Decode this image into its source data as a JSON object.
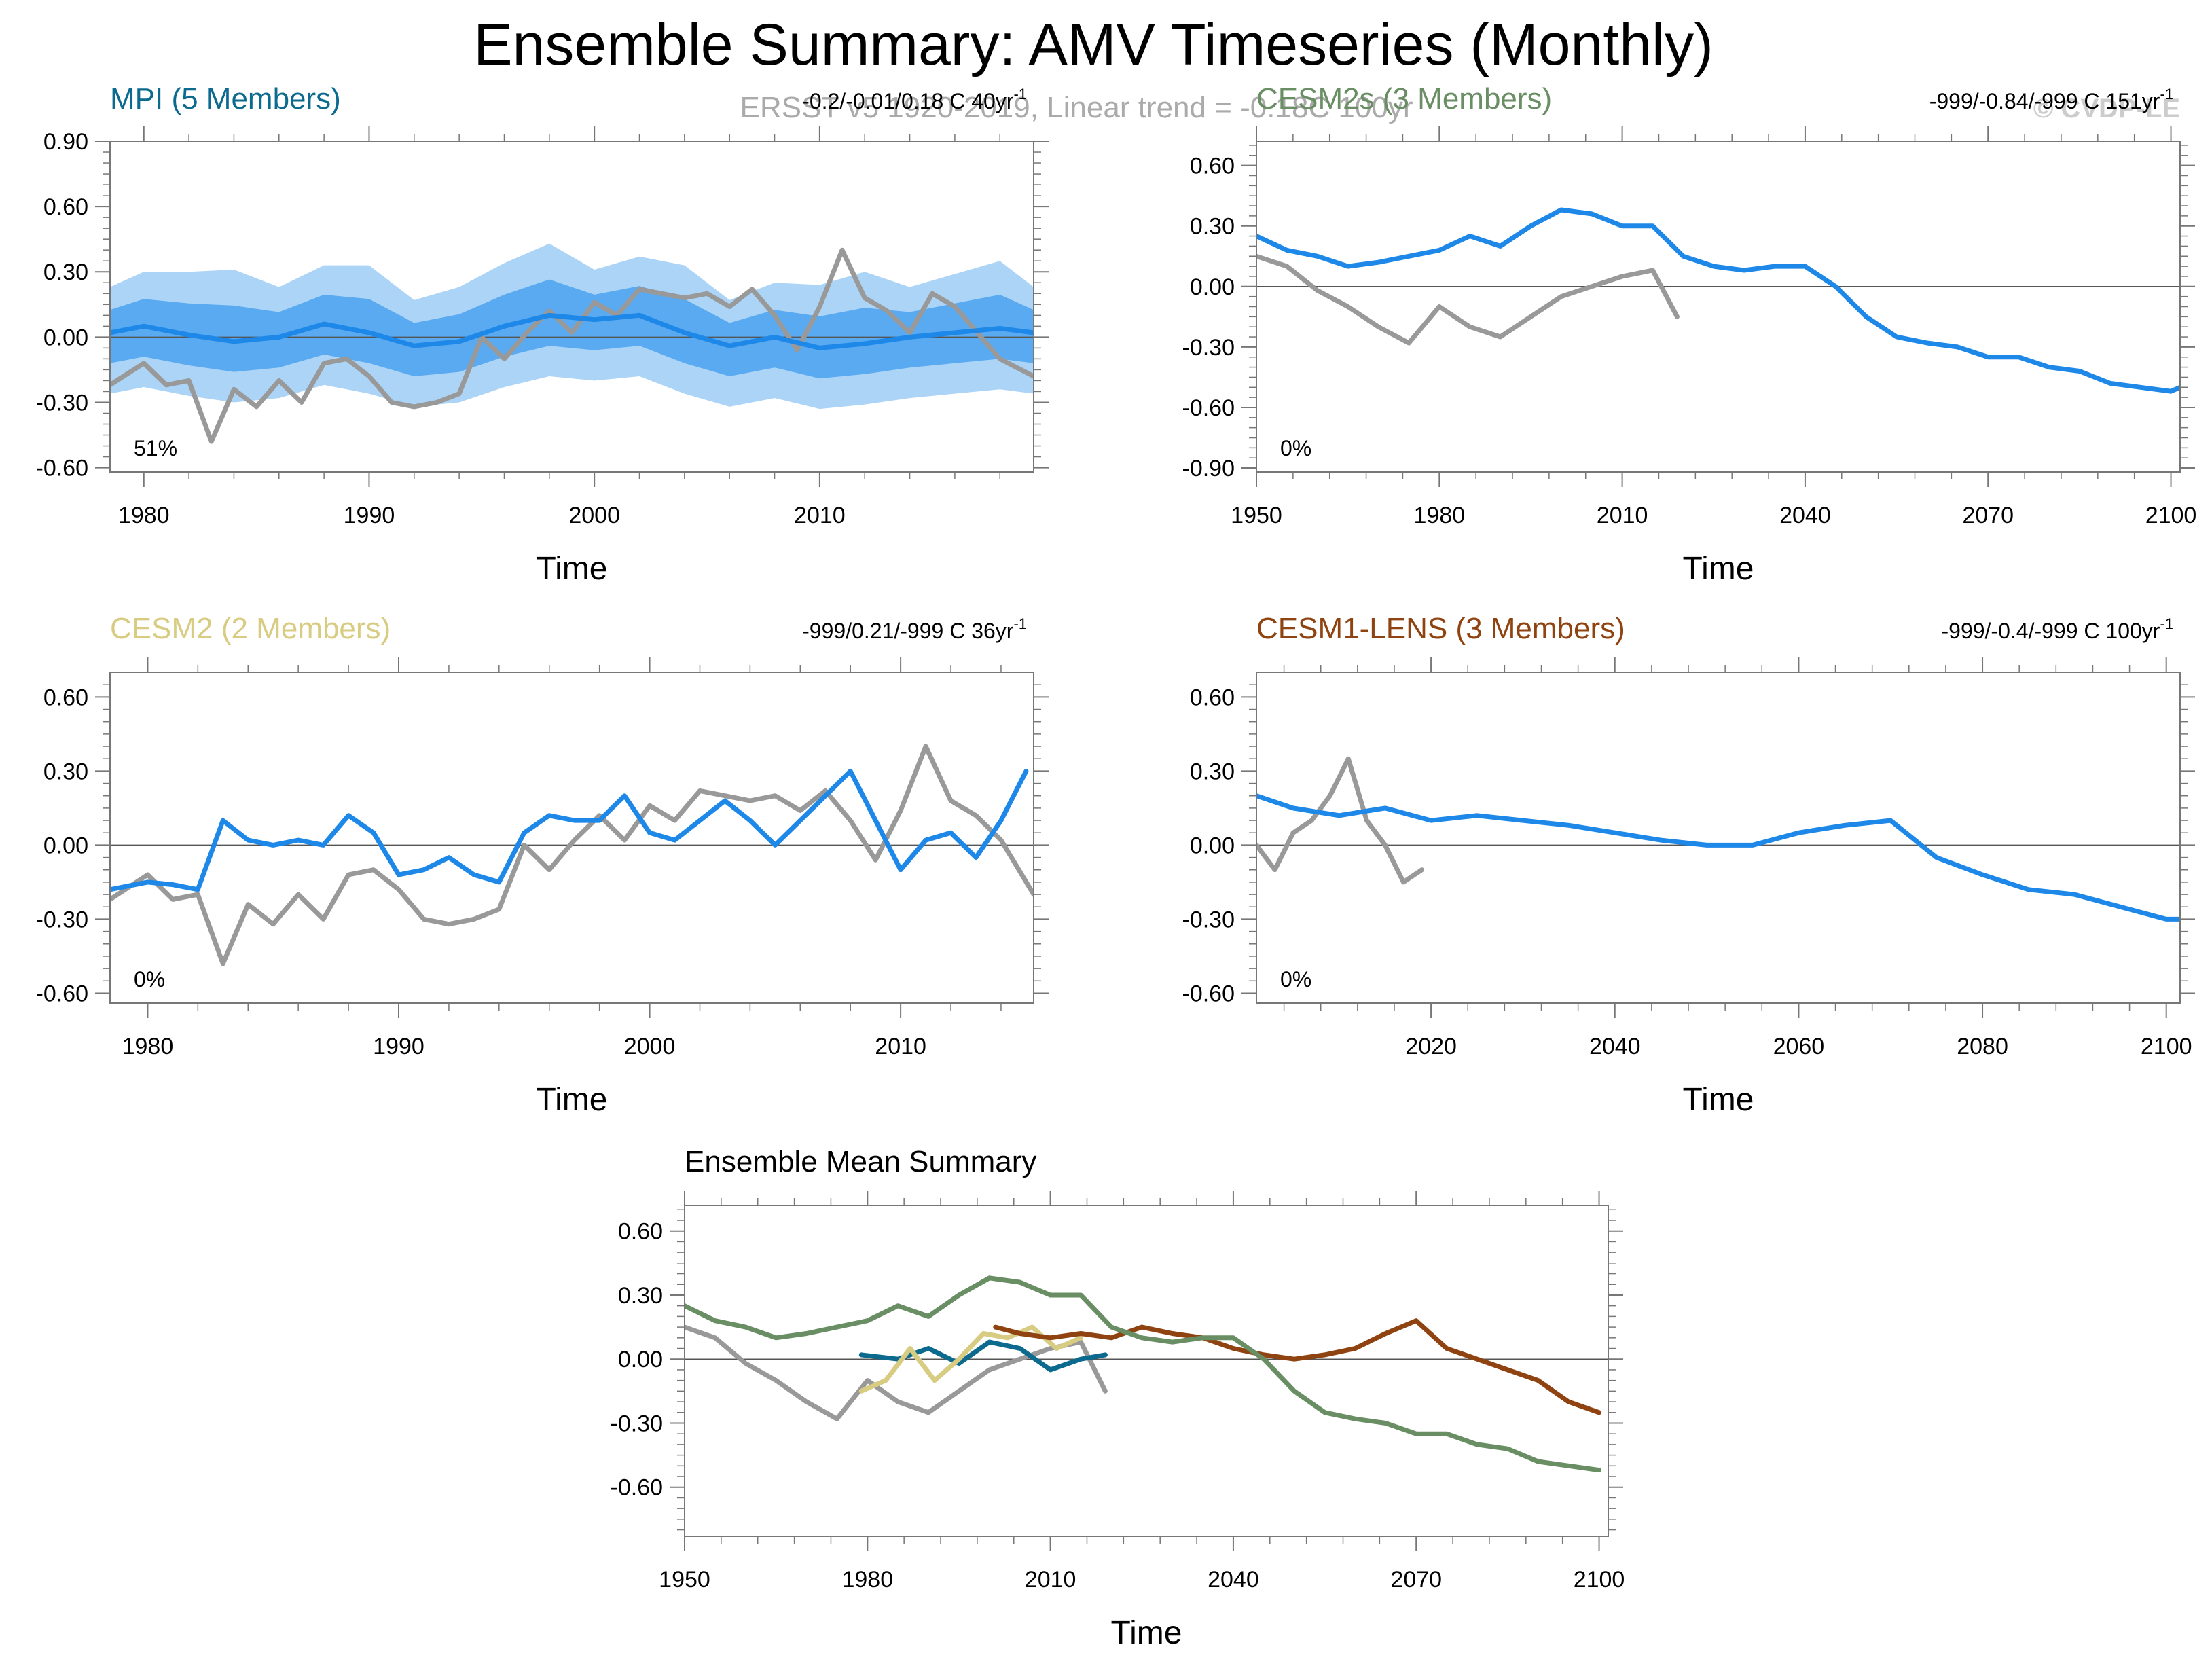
{
  "title": "Ensemble Summary: AMV Timeseries (Monthly)",
  "obs_note": "ERSST v5 1920-2019, Linear trend = -0.18C 100yr",
  "watermark": "© CVDP-LE",
  "colors": {
    "obs": "#999999",
    "ensemble": "#1e88e8",
    "spread_outer": "#9ecdf6",
    "spread_inner": "#4aa2ee",
    "mpi": "#0d6a8f",
    "cesm2s": "#6a8e64",
    "cesm2": "#d8cc82",
    "cesm1": "#8f4310",
    "frame": "#777777"
  },
  "chart_data": [
    {
      "id": "mpi",
      "type": "line",
      "title": "MPI (5 Members)",
      "stats": "-0.2/-0.01/0.18 C 40yr-1",
      "xlabel": "Time",
      "xlim": [
        1978.5,
        2019.5
      ],
      "ylim": [
        -0.62,
        0.9
      ],
      "xticks": [
        1980,
        1990,
        2000,
        2010
      ],
      "yticks": [
        -0.6,
        -0.3,
        0.0,
        0.3,
        0.6,
        0.9
      ],
      "percent_label": "51%",
      "spread": true,
      "series": [
        {
          "name": "ERSST v5",
          "role": "obs",
          "x": [
            1978.5,
            1980,
            1981,
            1982,
            1983,
            1984,
            1985,
            1986,
            1987,
            1988,
            1989,
            1990,
            1991,
            1992,
            1993,
            1994,
            1995,
            1996,
            1997,
            1998,
            1999,
            2000,
            2001,
            2002,
            2003,
            2004,
            2005,
            2006,
            2007,
            2008,
            2009,
            2010,
            2011,
            2012,
            2013,
            2014,
            2015,
            2016,
            2017,
            2018,
            2019.5
          ],
          "values": [
            -0.22,
            -0.12,
            -0.22,
            -0.2,
            -0.48,
            -0.24,
            -0.32,
            -0.2,
            -0.3,
            -0.12,
            -0.1,
            -0.18,
            -0.3,
            -0.32,
            -0.3,
            -0.26,
            0.0,
            -0.1,
            0.02,
            0.12,
            0.02,
            0.16,
            0.1,
            0.22,
            0.2,
            0.18,
            0.2,
            0.14,
            0.22,
            0.1,
            -0.06,
            0.14,
            0.4,
            0.18,
            0.12,
            0.02,
            0.2,
            0.14,
            0.02,
            -0.1,
            -0.18
          ]
        },
        {
          "name": "Ensemble mean",
          "role": "mean",
          "x": [
            1978.5,
            1980,
            1982,
            1984,
            1986,
            1988,
            1990,
            1992,
            1994,
            1996,
            1998,
            2000,
            2002,
            2004,
            2006,
            2008,
            2010,
            2012,
            2014,
            2016,
            2018,
            2019.5
          ],
          "values": [
            0.02,
            0.05,
            0.01,
            -0.02,
            0.0,
            0.06,
            0.02,
            -0.04,
            -0.02,
            0.05,
            0.1,
            0.08,
            0.1,
            0.02,
            -0.04,
            0.0,
            -0.05,
            -0.03,
            0.0,
            0.02,
            0.04,
            0.02
          ]
        }
      ]
    },
    {
      "id": "cesm2s",
      "type": "line",
      "title": "CESM2s (3 Members)",
      "stats": "-999/-0.84/-999 C 151yr-1",
      "xlabel": "Time",
      "xlim": [
        1950,
        2101.5
      ],
      "ylim": [
        -0.92,
        0.72
      ],
      "xticks": [
        1950,
        1980,
        2010,
        2040,
        2070,
        2100
      ],
      "yticks": [
        -0.9,
        -0.6,
        -0.3,
        0.0,
        0.3,
        0.6
      ],
      "percent_label": "0%",
      "series": [
        {
          "name": "ERSST v5",
          "role": "obs",
          "x": [
            1950,
            1955,
            1960,
            1965,
            1970,
            1975,
            1980,
            1985,
            1990,
            1995,
            2000,
            2005,
            2010,
            2015,
            2019
          ],
          "values": [
            0.15,
            0.1,
            -0.02,
            -0.1,
            -0.2,
            -0.28,
            -0.1,
            -0.2,
            -0.25,
            -0.15,
            -0.05,
            0.0,
            0.05,
            0.08,
            -0.15
          ]
        },
        {
          "name": "Ensemble mean",
          "role": "ensemble",
          "x": [
            1950,
            1955,
            1960,
            1965,
            1970,
            1975,
            1980,
            1985,
            1990,
            1995,
            2000,
            2005,
            2010,
            2015,
            2020,
            2025,
            2030,
            2035,
            2040,
            2045,
            2050,
            2055,
            2060,
            2065,
            2070,
            2075,
            2080,
            2085,
            2090,
            2095,
            2100,
            2101.5
          ],
          "values": [
            0.25,
            0.18,
            0.15,
            0.1,
            0.12,
            0.15,
            0.18,
            0.25,
            0.2,
            0.3,
            0.38,
            0.36,
            0.3,
            0.3,
            0.15,
            0.1,
            0.08,
            0.1,
            0.1,
            0.0,
            -0.15,
            -0.25,
            -0.28,
            -0.3,
            -0.35,
            -0.35,
            -0.4,
            -0.42,
            -0.48,
            -0.5,
            -0.52,
            -0.5
          ]
        }
      ]
    },
    {
      "id": "cesm2",
      "type": "line",
      "title": "CESM2 (2 Members)",
      "stats": "-999/0.21/-999 C 36yr-1",
      "xlabel": "Time",
      "xlim": [
        1978.5,
        2015.3
      ],
      "ylim": [
        -0.64,
        0.7
      ],
      "xticks": [
        1980,
        1990,
        2000,
        2010
      ],
      "yticks": [
        -0.6,
        -0.3,
        0.0,
        0.3,
        0.6
      ],
      "percent_label": "0%",
      "series": [
        {
          "name": "ERSST v5",
          "role": "obs",
          "x": [
            1978.5,
            1980,
            1981,
            1982,
            1983,
            1984,
            1985,
            1986,
            1987,
            1988,
            1989,
            1990,
            1991,
            1992,
            1993,
            1994,
            1995,
            1996,
            1997,
            1998,
            1999,
            2000,
            2001,
            2002,
            2003,
            2004,
            2005,
            2006,
            2007,
            2008,
            2009,
            2010,
            2011,
            2012,
            2013,
            2014,
            2015.3
          ],
          "values": [
            -0.22,
            -0.12,
            -0.22,
            -0.2,
            -0.48,
            -0.24,
            -0.32,
            -0.2,
            -0.3,
            -0.12,
            -0.1,
            -0.18,
            -0.3,
            -0.32,
            -0.3,
            -0.26,
            0.0,
            -0.1,
            0.02,
            0.12,
            0.02,
            0.16,
            0.1,
            0.22,
            0.2,
            0.18,
            0.2,
            0.14,
            0.22,
            0.1,
            -0.06,
            0.14,
            0.4,
            0.18,
            0.12,
            0.02,
            -0.2
          ]
        },
        {
          "name": "Ensemble mean",
          "role": "ensemble",
          "x": [
            1978.5,
            1980,
            1981,
            1982,
            1983,
            1984,
            1985,
            1986,
            1987,
            1988,
            1989,
            1990,
            1991,
            1992,
            1993,
            1994,
            1995,
            1996,
            1997,
            1998,
            1999,
            2000,
            2001,
            2002,
            2003,
            2004,
            2005,
            2006,
            2007,
            2008,
            2009,
            2010,
            2011,
            2012,
            2013,
            2014,
            2015
          ],
          "values": [
            -0.18,
            -0.15,
            -0.16,
            -0.18,
            0.1,
            0.02,
            0.0,
            0.02,
            0.0,
            0.12,
            0.05,
            -0.12,
            -0.1,
            -0.05,
            -0.12,
            -0.15,
            0.05,
            0.12,
            0.1,
            0.1,
            0.2,
            0.05,
            0.02,
            0.1,
            0.18,
            0.1,
            0.0,
            0.1,
            0.2,
            0.3,
            0.1,
            -0.1,
            0.02,
            0.05,
            -0.05,
            0.1,
            0.3
          ]
        }
      ]
    },
    {
      "id": "cesm1",
      "type": "line",
      "title": "CESM1-LENS (3 Members)",
      "stats": "-999/-0.4/-999 C 100yr-1",
      "xlabel": "Time",
      "xlim": [
        2001,
        2101.5
      ],
      "ylim": [
        -0.64,
        0.7
      ],
      "xticks": [
        2020,
        2040,
        2060,
        2080,
        2100
      ],
      "yticks": [
        -0.6,
        -0.3,
        0.0,
        0.3,
        0.6
      ],
      "percent_label": "0%",
      "series": [
        {
          "name": "ERSST v5",
          "role": "obs",
          "x": [
            2001,
            2003,
            2005,
            2007,
            2009,
            2011,
            2013,
            2015,
            2017,
            2019
          ],
          "values": [
            0.0,
            -0.1,
            0.05,
            0.1,
            0.2,
            0.35,
            0.1,
            0.0,
            -0.15,
            -0.1
          ]
        },
        {
          "name": "Ensemble mean",
          "role": "ensemble",
          "x": [
            2001,
            2005,
            2010,
            2015,
            2020,
            2025,
            2030,
            2035,
            2040,
            2045,
            2050,
            2055,
            2060,
            2065,
            2070,
            2075,
            2080,
            2085,
            2090,
            2095,
            2100,
            2101.5
          ],
          "values": [
            0.2,
            0.15,
            0.12,
            0.15,
            0.1,
            0.12,
            0.1,
            0.08,
            0.05,
            0.02,
            0.0,
            0.0,
            0.05,
            0.08,
            0.1,
            -0.05,
            -0.12,
            -0.18,
            -0.2,
            -0.25,
            -0.3,
            -0.3
          ]
        }
      ]
    },
    {
      "id": "summary",
      "type": "line",
      "title": "Ensemble Mean Summary",
      "xlabel": "Time",
      "xlim": [
        1950,
        2101.5
      ],
      "ylim": [
        -0.83,
        0.72
      ],
      "xticks": [
        1950,
        1980,
        2010,
        2040,
        2070,
        2100
      ],
      "yticks": [
        -0.6,
        -0.3,
        0.0,
        0.3,
        0.6
      ],
      "series": [
        {
          "name": "ERSST v5",
          "role": "obs",
          "x": [
            1950,
            1955,
            1960,
            1965,
            1970,
            1975,
            1980,
            1985,
            1990,
            1995,
            2000,
            2005,
            2010,
            2015,
            2019
          ],
          "values": [
            0.15,
            0.1,
            -0.02,
            -0.1,
            -0.2,
            -0.28,
            -0.1,
            -0.2,
            -0.25,
            -0.15,
            -0.05,
            0.0,
            0.05,
            0.08,
            -0.15
          ]
        },
        {
          "name": "MPI",
          "role": "mpi",
          "x": [
            1979,
            1985,
            1990,
            1995,
            2000,
            2005,
            2010,
            2015,
            2019
          ],
          "values": [
            0.02,
            0.0,
            0.05,
            -0.02,
            0.08,
            0.05,
            -0.05,
            0.0,
            0.02
          ]
        },
        {
          "name": "CESM2",
          "role": "cesm2",
          "x": [
            1979,
            1983,
            1987,
            1991,
            1995,
            1999,
            2003,
            2007,
            2011,
            2015
          ],
          "values": [
            -0.15,
            -0.1,
            0.05,
            -0.1,
            0.0,
            0.12,
            0.1,
            0.15,
            0.05,
            0.1
          ]
        },
        {
          "name": "CESM1-LENS",
          "role": "cesm1",
          "x": [
            2001,
            2005,
            2010,
            2015,
            2020,
            2025,
            2030,
            2035,
            2040,
            2045,
            2050,
            2055,
            2060,
            2065,
            2070,
            2075,
            2080,
            2085,
            2090,
            2095,
            2100
          ],
          "values": [
            0.15,
            0.12,
            0.1,
            0.12,
            0.1,
            0.15,
            0.12,
            0.1,
            0.05,
            0.02,
            0.0,
            0.02,
            0.05,
            0.12,
            0.18,
            0.05,
            0.0,
            -0.05,
            -0.1,
            -0.2,
            -0.25
          ]
        },
        {
          "name": "CESM2s",
          "role": "cesm2s",
          "x": [
            1950,
            1955,
            1960,
            1965,
            1970,
            1975,
            1980,
            1985,
            1990,
            1995,
            2000,
            2005,
            2010,
            2015,
            2020,
            2025,
            2030,
            2035,
            2040,
            2045,
            2050,
            2055,
            2060,
            2065,
            2070,
            2075,
            2080,
            2085,
            2090,
            2095,
            2100
          ],
          "values": [
            0.25,
            0.18,
            0.15,
            0.1,
            0.12,
            0.15,
            0.18,
            0.25,
            0.2,
            0.3,
            0.38,
            0.36,
            0.3,
            0.3,
            0.15,
            0.1,
            0.08,
            0.1,
            0.1,
            0.0,
            -0.15,
            -0.25,
            -0.28,
            -0.3,
            -0.35,
            -0.35,
            -0.4,
            -0.42,
            -0.48,
            -0.5,
            -0.52
          ]
        }
      ]
    }
  ]
}
